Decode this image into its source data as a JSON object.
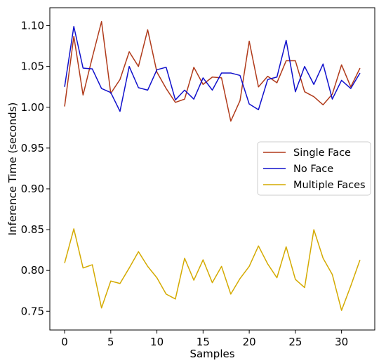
{
  "chart_data": {
    "type": "line",
    "title": "",
    "xlabel": "Samples",
    "ylabel": "Inference Time (seconds)",
    "xlim": [
      -1.6,
      33.6
    ],
    "ylim": [
      0.727,
      1.122
    ],
    "xticks": [
      0,
      5,
      10,
      15,
      20,
      25,
      30
    ],
    "yticks": [
      0.75,
      0.8,
      0.85,
      0.9,
      0.95,
      1.0,
      1.05,
      1.1
    ],
    "ytick_labels": [
      "0.75",
      "0.80",
      "0.85",
      "0.90",
      "0.95",
      "1.00",
      "1.05",
      "1.10"
    ],
    "grid": false,
    "legend_position": "center-right",
    "x": [
      0,
      1,
      2,
      3,
      4,
      5,
      6,
      7,
      8,
      9,
      10,
      11,
      12,
      13,
      14,
      15,
      16,
      17,
      18,
      19,
      20,
      21,
      22,
      23,
      24,
      25,
      26,
      27,
      28,
      29,
      30,
      31,
      32
    ],
    "series": [
      {
        "name": "Single Face",
        "color": "#b03a1a",
        "values": [
          1.001,
          1.087,
          1.015,
          1.061,
          1.105,
          1.017,
          1.034,
          1.068,
          1.05,
          1.095,
          1.043,
          1.023,
          1.006,
          1.01,
          1.049,
          1.028,
          1.037,
          1.036,
          0.983,
          1.008,
          1.081,
          1.025,
          1.038,
          1.03,
          1.057,
          1.057,
          1.019,
          1.013,
          1.003,
          1.016,
          1.052,
          1.025,
          1.048
        ]
      },
      {
        "name": "No Face",
        "color": "#1010cc",
        "values": [
          1.025,
          1.099,
          1.048,
          1.047,
          1.023,
          1.018,
          0.995,
          1.05,
          1.024,
          1.021,
          1.046,
          1.049,
          1.009,
          1.021,
          1.01,
          1.036,
          1.021,
          1.042,
          1.042,
          1.039,
          1.004,
          0.997,
          1.034,
          1.037,
          1.082,
          1.019,
          1.05,
          1.028,
          1.053,
          1.01,
          1.033,
          1.023,
          1.042
        ]
      },
      {
        "name": "Multiple Faces",
        "color": "#d4aa00",
        "values": [
          0.809,
          0.851,
          0.803,
          0.807,
          0.754,
          0.787,
          0.784,
          0.803,
          0.823,
          0.805,
          0.791,
          0.771,
          0.765,
          0.815,
          0.788,
          0.813,
          0.785,
          0.805,
          0.771,
          0.79,
          0.805,
          0.83,
          0.808,
          0.791,
          0.829,
          0.789,
          0.779,
          0.85,
          0.815,
          0.795,
          0.751,
          0.781,
          0.813
        ]
      }
    ]
  }
}
